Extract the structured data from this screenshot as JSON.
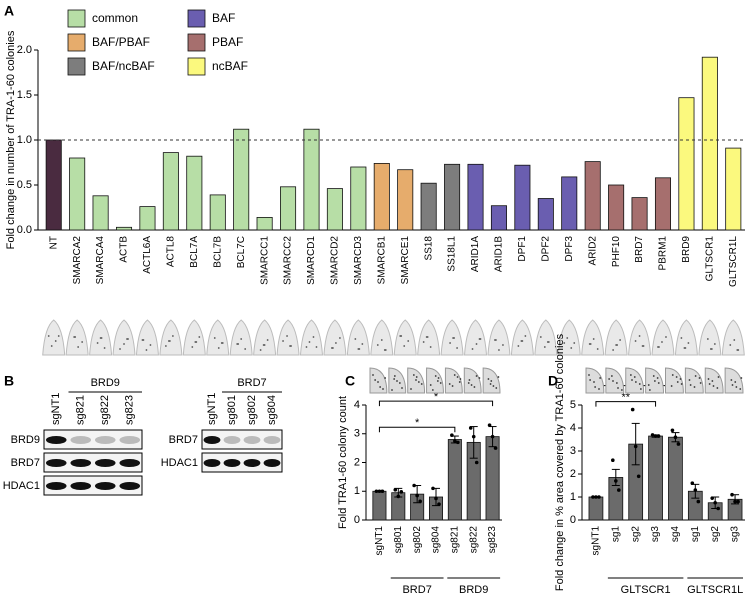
{
  "chart_data": [
    {
      "panel": "A",
      "type": "bar",
      "y_label": "Fold change in number of TRA-1-60 colonies",
      "categories": [
        "NT",
        "SMARCA2",
        "SMARCA4",
        "ACTB",
        "ACTL6A",
        "ACTL8",
        "BCL7A",
        "BCL7B",
        "BCL7C",
        "SMARCC1",
        "SMARCC2",
        "SMARCD1",
        "SMARCD2",
        "SMARCD3",
        "SMARCB1",
        "SMARCE1",
        "SS18",
        "SS18L1",
        "ARID1A",
        "ARID1B",
        "DPF1",
        "DPF2",
        "DPF3",
        "ARID2",
        "PHF10",
        "BRD7",
        "PBRM1",
        "BRD9",
        "GLTSCR1",
        "GLTSCR1L"
      ],
      "values": [
        1.0,
        0.8,
        0.38,
        0.03,
        0.26,
        0.86,
        0.82,
        0.39,
        1.12,
        0.14,
        0.48,
        1.12,
        0.46,
        0.7,
        0.74,
        0.67,
        0.52,
        0.73,
        0.73,
        0.27,
        0.72,
        0.35,
        0.59,
        0.76,
        0.5,
        0.36,
        0.58,
        1.47,
        1.92,
        0.91
      ],
      "colors": [
        "#4a2b40",
        "#b7dea6",
        "#b7dea6",
        "#b7dea6",
        "#b7dea6",
        "#b7dea6",
        "#b7dea6",
        "#b7dea6",
        "#b7dea6",
        "#b7dea6",
        "#b7dea6",
        "#b7dea6",
        "#b7dea6",
        "#b7dea6",
        "#e6ac6c",
        "#e6ac6c",
        "#7d7d7d",
        "#7d7d7d",
        "#6a5eb0",
        "#6a5eb0",
        "#6a5eb0",
        "#6a5eb0",
        "#6a5eb0",
        "#a66f6e",
        "#a66f6e",
        "#a66f6e",
        "#a66f6e",
        "#fbf97e",
        "#fbf97e",
        "#fbf97e"
      ],
      "legend": [
        {
          "name": "common",
          "color": "#b7dea6"
        },
        {
          "name": "BAF/PBAF",
          "color": "#e6ac6c"
        },
        {
          "name": "BAF/ncBAF",
          "color": "#7d7d7d"
        },
        {
          "name": "BAF",
          "color": "#6a5eb0"
        },
        {
          "name": "PBAF",
          "color": "#a66f6e"
        },
        {
          "name": "ncBAF",
          "color": "#fbf97e"
        }
      ],
      "ylim": [
        0,
        2.0
      ],
      "yticks": [
        {
          "value": 0,
          "label": "0.0"
        },
        0.5,
        {
          "value": 1,
          "label": "1.0"
        },
        1.5,
        {
          "value": 2,
          "label": "2.0"
        }
      ],
      "reference_line": 1
    },
    {
      "panel": "C",
      "type": "bar",
      "y_label": "Fold TRA1-60 colony count",
      "color": "#6b6b6b",
      "categories": [
        "sgNT1",
        "sg801",
        "sg802",
        "sg804",
        "sg821",
        "sg822",
        "sg823"
      ],
      "values": [
        1.0,
        0.95,
        0.9,
        0.8,
        2.8,
        2.7,
        2.9
      ],
      "errors": [
        0,
        0.15,
        0.3,
        0.3,
        0.12,
        0.55,
        0.35
      ],
      "points": [
        [
          1,
          1,
          1
        ],
        [
          1.05,
          0.82,
          0.98
        ],
        [
          1.2,
          0.85,
          0.65
        ],
        [
          1.1,
          0.75,
          0.55
        ],
        [
          2.95,
          2.75,
          2.7
        ],
        [
          3.2,
          2.9,
          2.0
        ],
        [
          3.3,
          2.9,
          2.5
        ]
      ],
      "ylim": [
        0,
        4
      ],
      "yticks": [
        0,
        1,
        2,
        3,
        4
      ],
      "groups": [
        {
          "name": "BRD7",
          "span": [
            1,
            3
          ]
        },
        {
          "name": "BRD9",
          "span": [
            4,
            6
          ]
        }
      ],
      "comparisons": [
        {
          "label": "*",
          "between": [
            0,
            4
          ]
        },
        {
          "label": "*",
          "between": [
            0,
            6
          ]
        }
      ]
    },
    {
      "panel": "D",
      "type": "bar",
      "y_label": "Fold change in % area covered by TRA1-60 colonies",
      "color": "#6b6b6b",
      "categories": [
        "sgNT1",
        "sg1",
        "sg2",
        "sg3",
        "sg4",
        "sg1",
        "sg2",
        "sg3"
      ],
      "values": [
        1.0,
        1.85,
        3.3,
        3.65,
        3.6,
        1.25,
        0.75,
        0.9
      ],
      "errors": [
        0,
        0.35,
        0.9,
        0.05,
        0.2,
        0.3,
        0.25,
        0.2
      ],
      "points": [
        [
          1,
          1,
          1
        ],
        [
          2.6,
          1.7,
          1.3
        ],
        [
          4.8,
          3.2,
          1.9
        ],
        [
          3.7,
          3.65,
          3.65
        ],
        [
          3.9,
          3.6,
          3.3
        ],
        [
          1.6,
          1.3,
          0.8
        ],
        [
          0.95,
          0.75,
          0.5
        ],
        [
          1.1,
          0.8,
          0.8
        ]
      ],
      "ylim": [
        0,
        5
      ],
      "yticks": [
        0,
        1,
        2,
        3,
        4,
        5
      ],
      "groups": [
        {
          "name": "GLTSCR1",
          "span": [
            1,
            4
          ]
        },
        {
          "name": "GLTSCR1L",
          "span": [
            5,
            7
          ]
        }
      ],
      "comparisons": [
        {
          "label": "**",
          "between": [
            0,
            3
          ]
        },
        {
          "label": "*",
          "between": [
            0,
            4
          ]
        }
      ]
    }
  ],
  "blot_panel": {
    "panel": "B",
    "blots": [
      {
        "group": "BRD9",
        "lanes": [
          "sgNT1",
          "sg821",
          "sg822",
          "sg823"
        ],
        "rows": [
          "BRD9",
          "BRD7",
          "HDAC1"
        ]
      },
      {
        "group": "BRD7",
        "lanes": [
          "sgNT1",
          "sg801",
          "sg802",
          "sg804"
        ],
        "rows": [
          "BRD7",
          "HDAC1"
        ]
      }
    ]
  }
}
